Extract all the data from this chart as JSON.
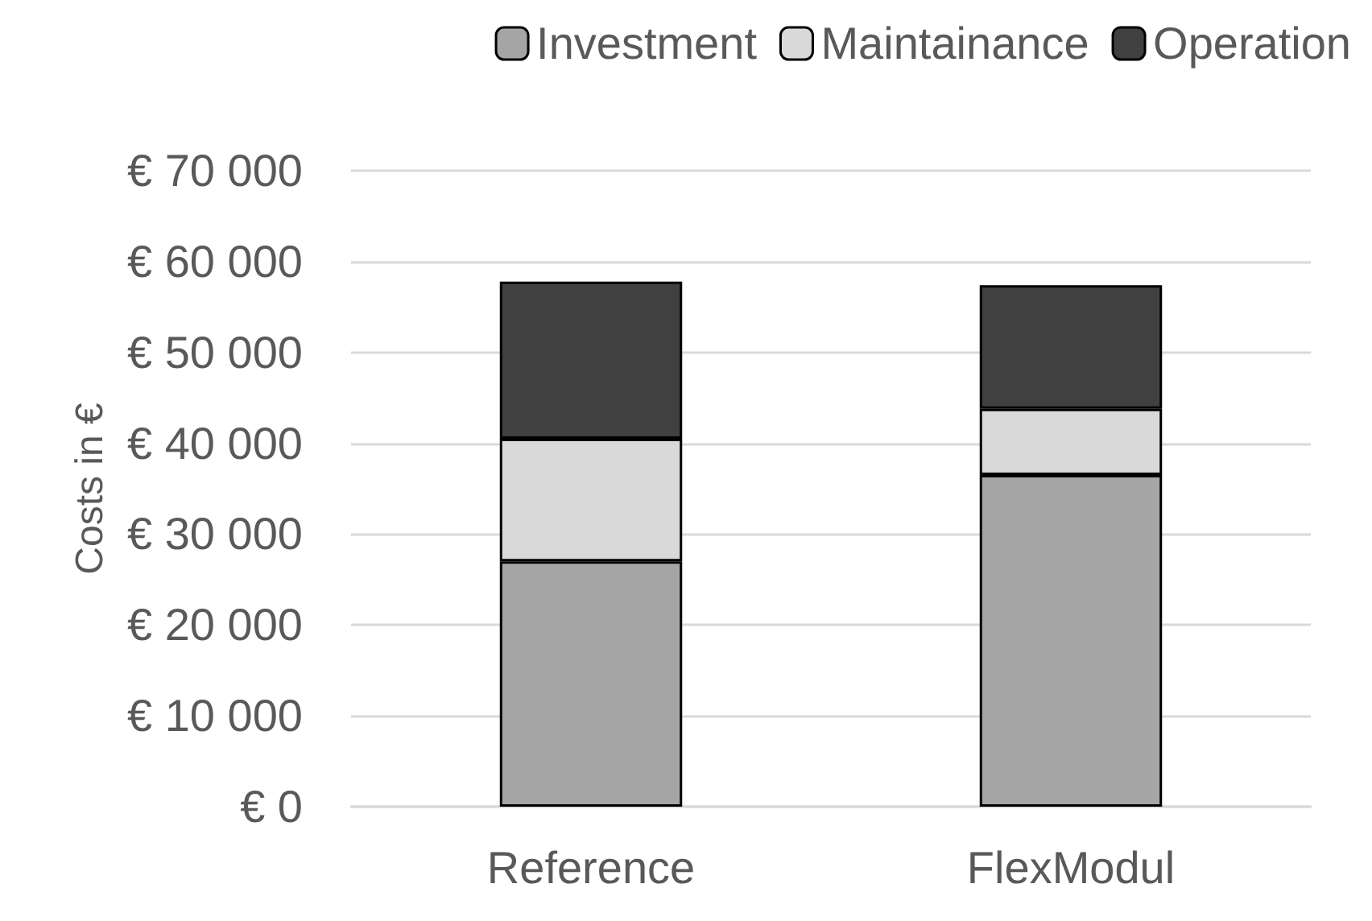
{
  "chart_data": {
    "type": "bar",
    "ylabel": "Costs in €",
    "categories": [
      "Reference",
      "FlexModul"
    ],
    "stacked": true,
    "series": [
      {
        "name": "Investment",
        "color": "#a5a5a5",
        "values": [
          27000,
          36500
        ]
      },
      {
        "name": "Maintainance",
        "color": "#d9d9d9",
        "values": [
          13500,
          7300
        ]
      },
      {
        "name": "Operation",
        "color": "#404040",
        "values": [
          17300,
          13600
        ]
      }
    ],
    "ylim": [
      0,
      70000
    ],
    "yticks": [
      {
        "value": 0,
        "label": "€ 0"
      },
      {
        "value": 10000,
        "label": "€ 10 000"
      },
      {
        "value": 20000,
        "label": "€ 20 000"
      },
      {
        "value": 30000,
        "label": "€ 30 000"
      },
      {
        "value": 40000,
        "label": "€ 40 000"
      },
      {
        "value": 50000,
        "label": "€ 50 000"
      },
      {
        "value": 60000,
        "label": "€ 60 000"
      },
      {
        "value": 70000,
        "label": "€ 70 000"
      }
    ],
    "grid": "y",
    "legend": "top right"
  }
}
